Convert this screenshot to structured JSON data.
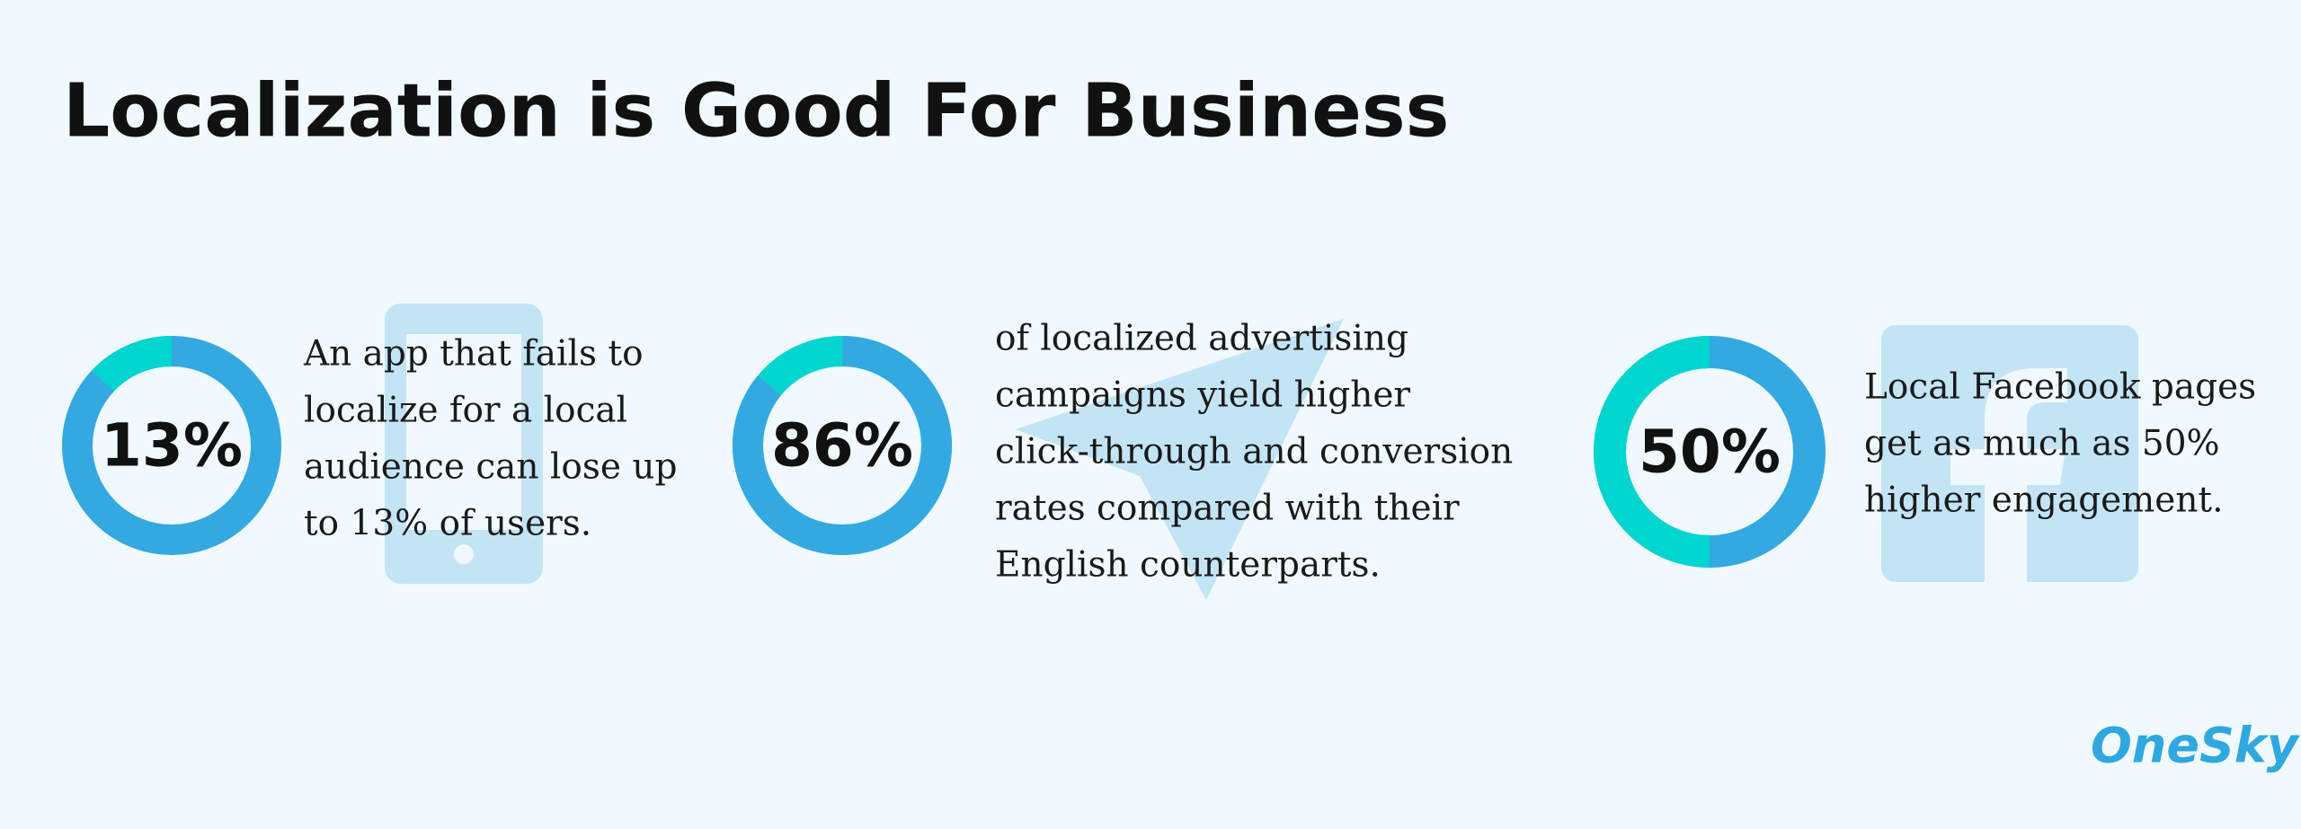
{
  "title": "Localization is Good For Business",
  "items": [
    {
      "value": 13,
      "label": "13%",
      "color": "#00d6cf",
      "rest_color": "#34a9e1",
      "clockwise": false,
      "lines": [
        "An app that fails to",
        "localize for a local",
        "audience can lose up",
        "to 13% of users."
      ]
    },
    {
      "value": 86,
      "label": "86%",
      "color": "#34a9e1",
      "rest_color": "#00d6cf",
      "clockwise": true,
      "lines": [
        "of localized advertising",
        "campaigns yield higher",
        "click-through and conversion",
        "rates compared with their",
        "English counterparts."
      ]
    },
    {
      "value": 50,
      "label": "50%",
      "color": "#00d6cf",
      "rest_color": "#34a9e1",
      "clockwise": false,
      "lines": [
        "Local Facebook pages",
        "get as much as 50%",
        "higher engagement."
      ]
    }
  ],
  "logo": "OneSky"
}
